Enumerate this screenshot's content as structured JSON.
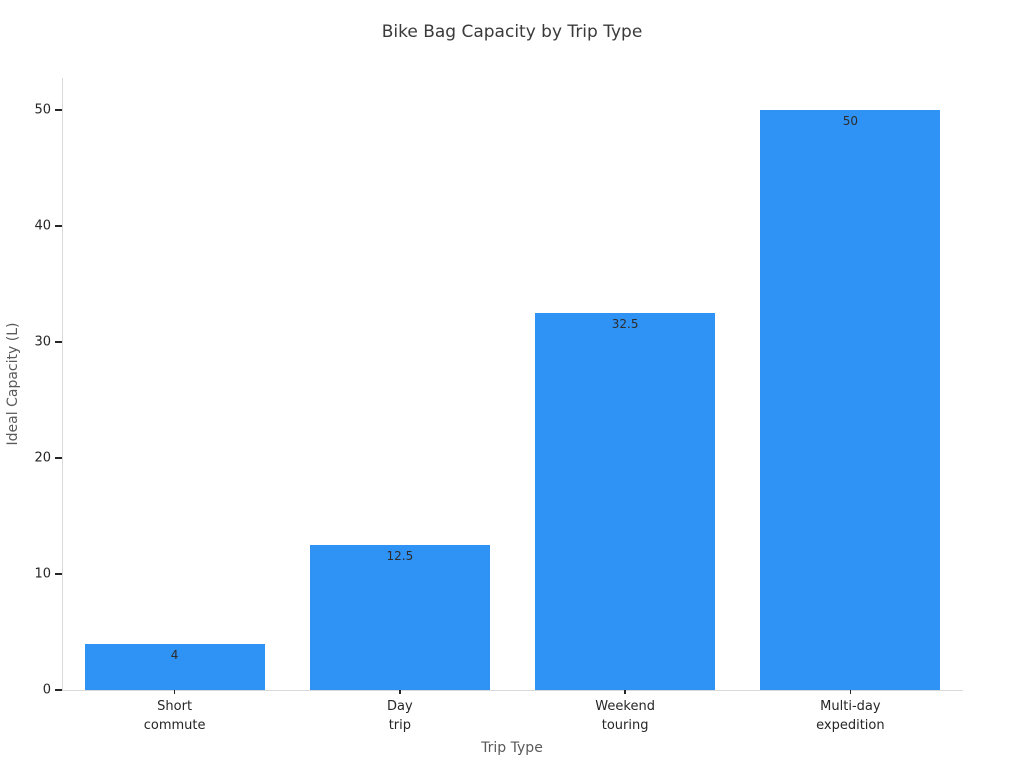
{
  "chart_data": {
    "type": "bar",
    "title": "Bike Bag Capacity by Trip Type",
    "xlabel": "Trip Type",
    "ylabel": "Ideal Capacity (L)",
    "categories": [
      "Short\ncommute",
      "Day\ntrip",
      "Weekend\ntouring",
      "Multi-day\nexpedition"
    ],
    "values": [
      4,
      12.5,
      32.5,
      50
    ],
    "value_labels": [
      "4",
      "12.5",
      "32.5",
      "50"
    ],
    "yticks": [
      0,
      10,
      20,
      30,
      40,
      50
    ],
    "ytick_labels": [
      "0",
      "10",
      "20",
      "30",
      "40",
      "50"
    ],
    "ylim": [
      0,
      52.75
    ],
    "bar_width_fraction": 0.8,
    "grid": false,
    "legend": "none",
    "colors": {
      "bar": "#2F92F5",
      "spine": "#d9d9d9",
      "tick": "#262626",
      "tick_label": "#262626",
      "title_text": "#3a3a3a",
      "axis_label_text": "#5a5a5a",
      "value_label_text": "#2d2d2d",
      "background": "#ffffff"
    }
  }
}
